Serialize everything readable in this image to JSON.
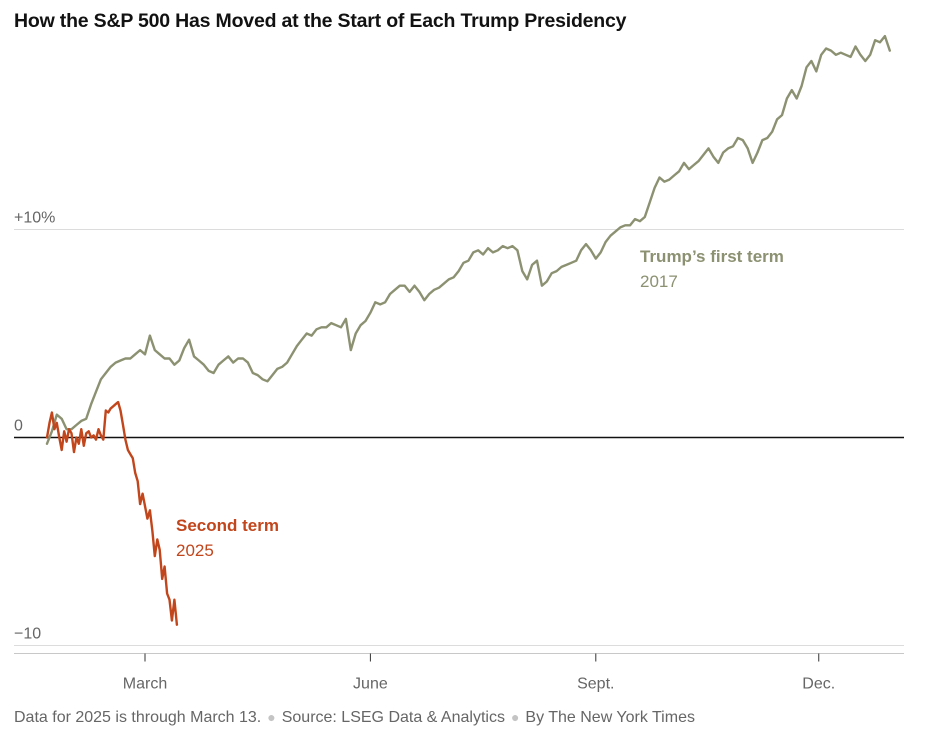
{
  "chart_data": {
    "type": "line",
    "title": "How the S&P 500 Has Moved at the Start of Each Trump Presidency",
    "ylabel": "",
    "xlabel": "",
    "y_unit": "% change",
    "ylim": [
      -10,
      20
    ],
    "xlim": [
      0,
      345
    ],
    "x_unit": "days since January 20 inauguration",
    "y_ticks": [
      {
        "value": 10,
        "label": "+10%"
      },
      {
        "value": 0,
        "label": "0"
      },
      {
        "value": -10,
        "label": "−10"
      }
    ],
    "x_ticks": [
      {
        "value": 40,
        "label": "March"
      },
      {
        "value": 132,
        "label": "June"
      },
      {
        "value": 224,
        "label": "Sept."
      },
      {
        "value": 315,
        "label": "Dec."
      }
    ],
    "grid": "horizontal",
    "series": [
      {
        "name": "Trump’s first term",
        "label_year": "2017",
        "color": "#8b9171",
        "points": [
          [
            0,
            -0.3
          ],
          [
            2,
            0.3
          ],
          [
            4,
            1.1
          ],
          [
            6,
            0.9
          ],
          [
            8,
            0.4
          ],
          [
            10,
            0.4
          ],
          [
            12,
            0.6
          ],
          [
            14,
            0.8
          ],
          [
            16,
            0.9
          ],
          [
            18,
            1.6
          ],
          [
            20,
            2.2
          ],
          [
            22,
            2.8
          ],
          [
            24,
            3.1
          ],
          [
            26,
            3.4
          ],
          [
            28,
            3.6
          ],
          [
            30,
            3.7
          ],
          [
            32,
            3.8
          ],
          [
            34,
            3.8
          ],
          [
            36,
            4.0
          ],
          [
            38,
            4.2
          ],
          [
            40,
            4.0
          ],
          [
            42,
            4.9
          ],
          [
            44,
            4.2
          ],
          [
            46,
            4.0
          ],
          [
            48,
            3.8
          ],
          [
            50,
            3.8
          ],
          [
            52,
            3.5
          ],
          [
            54,
            3.7
          ],
          [
            56,
            4.3
          ],
          [
            58,
            4.7
          ],
          [
            60,
            3.9
          ],
          [
            62,
            3.7
          ],
          [
            64,
            3.5
          ],
          [
            66,
            3.2
          ],
          [
            68,
            3.1
          ],
          [
            70,
            3.5
          ],
          [
            72,
            3.7
          ],
          [
            74,
            3.9
          ],
          [
            76,
            3.6
          ],
          [
            78,
            3.8
          ],
          [
            80,
            3.8
          ],
          [
            82,
            3.6
          ],
          [
            84,
            3.1
          ],
          [
            86,
            3.0
          ],
          [
            88,
            2.8
          ],
          [
            90,
            2.7
          ],
          [
            92,
            3.0
          ],
          [
            94,
            3.3
          ],
          [
            96,
            3.4
          ],
          [
            98,
            3.6
          ],
          [
            100,
            4.0
          ],
          [
            102,
            4.4
          ],
          [
            104,
            4.7
          ],
          [
            106,
            5.0
          ],
          [
            108,
            4.9
          ],
          [
            110,
            5.2
          ],
          [
            112,
            5.3
          ],
          [
            114,
            5.3
          ],
          [
            116,
            5.5
          ],
          [
            118,
            5.4
          ],
          [
            120,
            5.3
          ],
          [
            122,
            5.7
          ],
          [
            124,
            4.2
          ],
          [
            126,
            5.0
          ],
          [
            128,
            5.4
          ],
          [
            130,
            5.6
          ],
          [
            132,
            6.0
          ],
          [
            134,
            6.5
          ],
          [
            136,
            6.4
          ],
          [
            138,
            6.5
          ],
          [
            140,
            6.9
          ],
          [
            142,
            7.1
          ],
          [
            144,
            7.3
          ],
          [
            146,
            7.3
          ],
          [
            148,
            7.0
          ],
          [
            150,
            7.3
          ],
          [
            152,
            7.0
          ],
          [
            154,
            6.6
          ],
          [
            156,
            6.9
          ],
          [
            158,
            7.1
          ],
          [
            160,
            7.2
          ],
          [
            162,
            7.4
          ],
          [
            164,
            7.6
          ],
          [
            166,
            7.7
          ],
          [
            168,
            8.0
          ],
          [
            170,
            8.4
          ],
          [
            172,
            8.5
          ],
          [
            174,
            8.9
          ],
          [
            176,
            9.0
          ],
          [
            178,
            8.8
          ],
          [
            180,
            9.1
          ],
          [
            182,
            8.9
          ],
          [
            184,
            9.0
          ],
          [
            186,
            9.2
          ],
          [
            188,
            9.1
          ],
          [
            190,
            9.2
          ],
          [
            192,
            9.0
          ],
          [
            194,
            8.0
          ],
          [
            196,
            7.6
          ],
          [
            198,
            8.3
          ],
          [
            200,
            8.5
          ],
          [
            202,
            7.3
          ],
          [
            204,
            7.5
          ],
          [
            206,
            7.9
          ],
          [
            208,
            8.0
          ],
          [
            210,
            8.2
          ],
          [
            212,
            8.3
          ],
          [
            214,
            8.4
          ],
          [
            216,
            8.5
          ],
          [
            218,
            9.0
          ],
          [
            220,
            9.3
          ],
          [
            222,
            9.0
          ],
          [
            224,
            8.6
          ],
          [
            226,
            8.9
          ],
          [
            228,
            9.4
          ],
          [
            230,
            9.7
          ],
          [
            232,
            9.9
          ],
          [
            234,
            10.1
          ],
          [
            236,
            10.2
          ],
          [
            238,
            10.2
          ],
          [
            240,
            10.5
          ],
          [
            242,
            10.4
          ],
          [
            244,
            10.6
          ],
          [
            246,
            11.3
          ],
          [
            248,
            12.0
          ],
          [
            250,
            12.5
          ],
          [
            252,
            12.3
          ],
          [
            254,
            12.4
          ],
          [
            256,
            12.6
          ],
          [
            258,
            12.8
          ],
          [
            260,
            13.2
          ],
          [
            262,
            12.9
          ],
          [
            264,
            13.1
          ],
          [
            266,
            13.3
          ],
          [
            268,
            13.6
          ],
          [
            270,
            13.9
          ],
          [
            272,
            13.5
          ],
          [
            274,
            13.2
          ],
          [
            276,
            13.7
          ],
          [
            278,
            13.9
          ],
          [
            280,
            14.0
          ],
          [
            282,
            14.4
          ],
          [
            284,
            14.3
          ],
          [
            286,
            13.9
          ],
          [
            288,
            13.2
          ],
          [
            290,
            13.7
          ],
          [
            292,
            14.3
          ],
          [
            294,
            14.4
          ],
          [
            296,
            14.7
          ],
          [
            298,
            15.3
          ],
          [
            300,
            15.5
          ],
          [
            302,
            16.3
          ],
          [
            304,
            16.7
          ],
          [
            306,
            16.3
          ],
          [
            308,
            16.9
          ],
          [
            310,
            17.8
          ],
          [
            312,
            18.1
          ],
          [
            314,
            17.6
          ],
          [
            316,
            18.4
          ],
          [
            318,
            18.7
          ],
          [
            320,
            18.6
          ],
          [
            322,
            18.4
          ],
          [
            324,
            18.5
          ],
          [
            326,
            18.4
          ],
          [
            328,
            18.3
          ],
          [
            330,
            18.8
          ],
          [
            332,
            18.4
          ],
          [
            334,
            18.1
          ],
          [
            336,
            18.4
          ],
          [
            338,
            19.1
          ],
          [
            340,
            19.0
          ],
          [
            342,
            19.3
          ],
          [
            344,
            18.6
          ]
        ]
      },
      {
        "name": "Second term",
        "label_year": "2025",
        "color": "#c2461c",
        "points": [
          [
            0,
            0.0
          ],
          [
            1,
            0.7
          ],
          [
            2,
            1.2
          ],
          [
            3,
            0.4
          ],
          [
            4,
            0.7
          ],
          [
            5,
            0.0
          ],
          [
            6,
            -0.6
          ],
          [
            7,
            0.3
          ],
          [
            8,
            -0.2
          ],
          [
            9,
            0.4
          ],
          [
            10,
            0.2
          ],
          [
            11,
            -0.7
          ],
          [
            12,
            0.0
          ],
          [
            13,
            -0.3
          ],
          [
            14,
            0.4
          ],
          [
            15,
            -0.4
          ],
          [
            16,
            0.2
          ],
          [
            17,
            0.3
          ],
          [
            18,
            0.0
          ],
          [
            19,
            0.1
          ],
          [
            20,
            -0.1
          ],
          [
            21,
            0.4
          ],
          [
            22,
            0.1
          ],
          [
            23,
            -0.1
          ],
          [
            24,
            1.3
          ],
          [
            25,
            1.2
          ],
          [
            26,
            1.4
          ],
          [
            27,
            1.5
          ],
          [
            28,
            1.6
          ],
          [
            29,
            1.7
          ],
          [
            30,
            1.3
          ],
          [
            31,
            0.6
          ],
          [
            32,
            -0.1
          ],
          [
            33,
            -0.6
          ],
          [
            34,
            -0.8
          ],
          [
            35,
            -1.0
          ],
          [
            36,
            -1.7
          ],
          [
            37,
            -2.1
          ],
          [
            38,
            -3.2
          ],
          [
            39,
            -2.7
          ],
          [
            40,
            -3.3
          ],
          [
            41,
            -3.9
          ],
          [
            42,
            -3.5
          ],
          [
            43,
            -4.5
          ],
          [
            44,
            -5.7
          ],
          [
            45,
            -4.9
          ],
          [
            46,
            -5.4
          ],
          [
            47,
            -6.8
          ],
          [
            48,
            -6.2
          ],
          [
            49,
            -7.5
          ],
          [
            50,
            -7.8
          ],
          [
            51,
            -8.8
          ],
          [
            52,
            -7.8
          ],
          [
            53,
            -9.0
          ]
        ]
      }
    ],
    "annotations": [
      {
        "series": 0,
        "text": "Trump’s first term",
        "sub": "2017"
      },
      {
        "series": 1,
        "text": "Second term",
        "sub": "2025"
      }
    ]
  },
  "footer": {
    "note": "Data for 2025 is through March 13.",
    "source": "Source: LSEG Data & Analytics",
    "credit": "By The New York Times"
  }
}
